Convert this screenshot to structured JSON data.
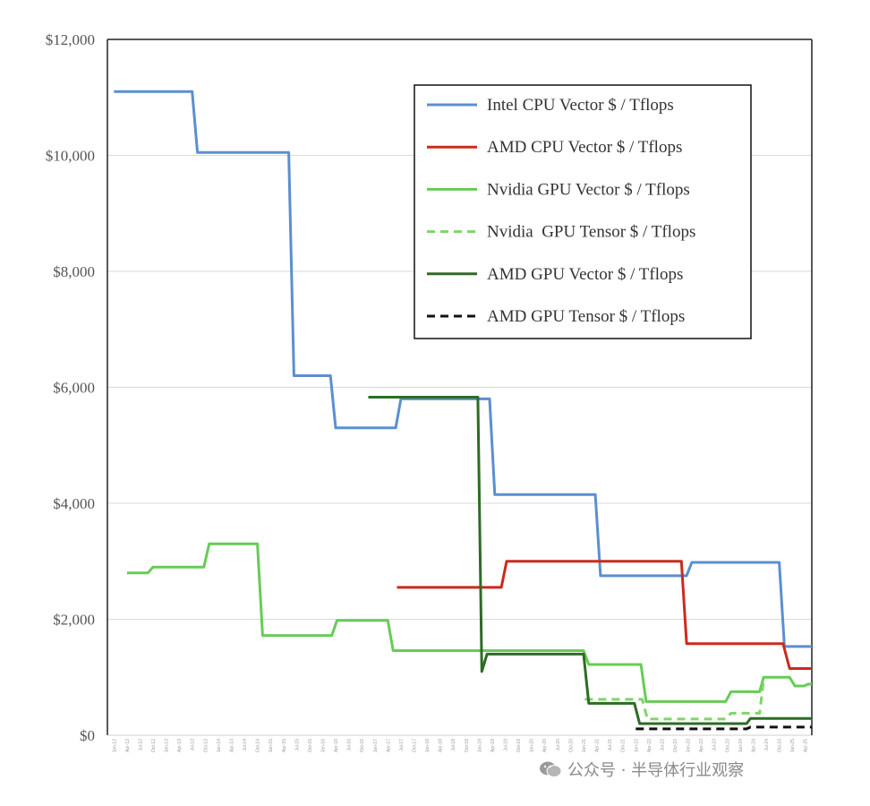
{
  "chart_data": {
    "type": "line",
    "title": "",
    "xlabel": "",
    "ylabel": "",
    "ylim": [
      0,
      12000
    ],
    "yticks": [
      0,
      2000,
      4000,
      6000,
      8000,
      10000,
      12000
    ],
    "ytick_labels": [
      "$0",
      "$2,000",
      "$4,000",
      "$6,000",
      "$8,000",
      "$10,000",
      "$12,000"
    ],
    "x_range": [
      0,
      54
    ],
    "categories": [
      "Jan-12",
      "Apr-12",
      "Jul-12",
      "Oct-12",
      "Jan-13",
      "Apr-13",
      "Jul-13",
      "Oct-13",
      "Jan-14",
      "Apr-14",
      "Jul-14",
      "Oct-14",
      "Jan-15",
      "Apr-15",
      "Jul-15",
      "Oct-15",
      "Jan-16",
      "Apr-16",
      "Jul-16",
      "Oct-16",
      "Jan-17",
      "Apr-17",
      "Jul-17",
      "Oct-17",
      "Jan-18",
      "Apr-18",
      "Jul-18",
      "Oct-18",
      "Jan-19",
      "Apr-19",
      "Jul-19",
      "Oct-19",
      "Jan-20",
      "Apr-20",
      "Jul-20",
      "Oct-20",
      "Jan-21",
      "Apr-21",
      "Jul-21",
      "Oct-21",
      "Jan-22",
      "Apr-22",
      "Jul-22",
      "Oct-22",
      "Jan-23",
      "Apr-23",
      "Jul-23",
      "Oct-23",
      "Jan-24",
      "Apr-24",
      "Jul-24",
      "Oct-24",
      "Jan-25",
      "Apr-25"
    ],
    "grid": true,
    "legend_position": "top-right",
    "series": [
      {
        "name": "Intel CPU Vector $ / Tflops",
        "color": "#5b8fd0",
        "dash": "solid",
        "points": [
          [
            0.5,
            11100
          ],
          [
            6.5,
            11100
          ],
          [
            6.9,
            10050
          ],
          [
            13.9,
            10050
          ],
          [
            14.3,
            6200
          ],
          [
            17.1,
            6200
          ],
          [
            17.5,
            5300
          ],
          [
            22.1,
            5300
          ],
          [
            22.5,
            5800
          ],
          [
            29.3,
            5800
          ],
          [
            29.7,
            4150
          ],
          [
            37.4,
            4150
          ],
          [
            37.8,
            2750
          ],
          [
            44.4,
            2750
          ],
          [
            44.8,
            2980
          ],
          [
            51.5,
            2980
          ],
          [
            51.9,
            1530
          ],
          [
            54,
            1530
          ]
        ]
      },
      {
        "name": "AMD CPU Vector $ / Tflops",
        "color": "#cc2a1e",
        "dash": "solid",
        "points": [
          [
            22.2,
            2550
          ],
          [
            30.2,
            2550
          ],
          [
            30.6,
            3000
          ],
          [
            44.0,
            3000
          ],
          [
            44.4,
            1580
          ],
          [
            51.8,
            1580
          ],
          [
            52.3,
            1150
          ],
          [
            54,
            1150
          ]
        ]
      },
      {
        "name": "Nvidia GPU Vector $ / Tflops",
        "color": "#66cc55",
        "dash": "solid",
        "points": [
          [
            1.5,
            2800
          ],
          [
            3.1,
            2800
          ],
          [
            3.5,
            2900
          ],
          [
            7.4,
            2900
          ],
          [
            7.8,
            3300
          ],
          [
            11.5,
            3300
          ],
          [
            11.9,
            1720
          ],
          [
            17.2,
            1720
          ],
          [
            17.6,
            1980
          ],
          [
            21.5,
            1980
          ],
          [
            21.9,
            1460
          ],
          [
            36.5,
            1460
          ],
          [
            36.9,
            1220
          ],
          [
            40.9,
            1220
          ],
          [
            41.3,
            580
          ],
          [
            47.4,
            580
          ],
          [
            47.8,
            750
          ],
          [
            50.0,
            750
          ],
          [
            50.3,
            1000
          ],
          [
            52.3,
            1000
          ],
          [
            52.7,
            850
          ],
          [
            53.4,
            850
          ],
          [
            53.7,
            880
          ],
          [
            54,
            880
          ]
        ]
      },
      {
        "name": "Nvidia  GPU Tensor $ / Tflops",
        "color": "#7dd66a",
        "dash": "dashed",
        "points": [
          [
            36.6,
            620
          ],
          [
            41.0,
            620
          ],
          [
            41.4,
            280
          ],
          [
            47.4,
            280
          ],
          [
            47.8,
            380
          ],
          [
            50.0,
            380
          ],
          [
            50.3,
            950
          ]
        ]
      },
      {
        "name": "AMD GPU Vector $ / Tflops",
        "color": "#2e6b25",
        "dash": "solid",
        "points": [
          [
            20.0,
            5830
          ],
          [
            28.4,
            5830
          ],
          [
            28.7,
            1100
          ],
          [
            29.1,
            1400
          ],
          [
            36.5,
            1400
          ],
          [
            36.9,
            550
          ],
          [
            40.4,
            550
          ],
          [
            40.8,
            200
          ],
          [
            49.0,
            200
          ],
          [
            49.3,
            290
          ],
          [
            54,
            290
          ]
        ]
      },
      {
        "name": "AMD GPU Tensor $ / Tflops",
        "color": "#111111",
        "dash": "dashed",
        "points": [
          [
            40.5,
            110
          ],
          [
            49.0,
            110
          ],
          [
            49.3,
            140
          ],
          [
            54,
            140
          ]
        ]
      }
    ]
  },
  "watermark": {
    "text": "公众号 · 半导体行业观察"
  }
}
